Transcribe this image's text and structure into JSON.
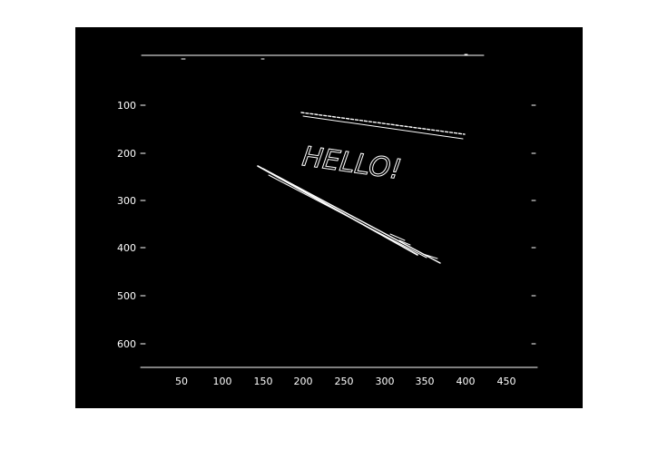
{
  "figure": {
    "background": "#ffffff",
    "panel_color": "#000000",
    "line_color": "#ffffff"
  },
  "axes": {
    "x_ticks": [
      "50",
      "100",
      "150",
      "200",
      "250",
      "300",
      "350",
      "400",
      "450"
    ],
    "y_ticks": [
      "100",
      "200",
      "300",
      "400",
      "500",
      "600"
    ]
  },
  "image": {
    "content": "edge map",
    "text": "HELLO!"
  }
}
